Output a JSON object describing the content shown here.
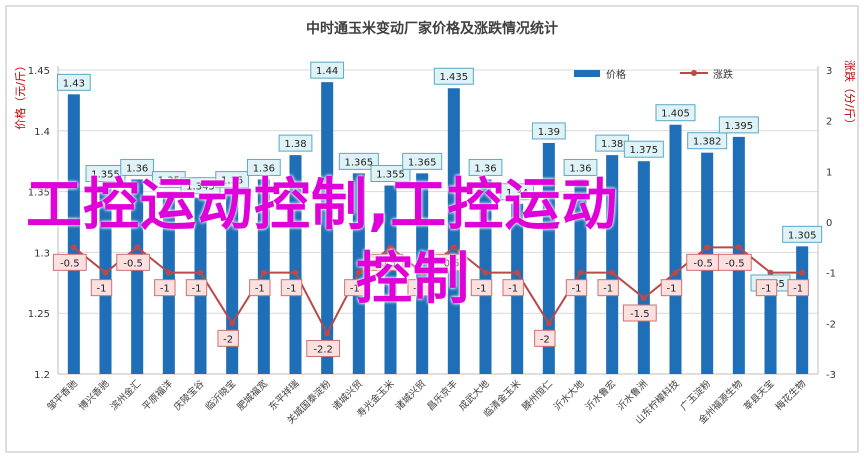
{
  "chart_data": {
    "type": "bar",
    "title": "中时通玉米变动厂家价格及涨跌情况统计",
    "y_left_label": "价格（元/斤）",
    "y_right_label": "涨跌（分/斤）",
    "ylim_left": [
      1.2,
      1.45
    ],
    "yticks_left": [
      "1.2",
      "1.25",
      "1.3",
      "1.35",
      "1.4",
      "1.45"
    ],
    "ylim_right": [
      -3,
      3
    ],
    "yticks_right": [
      "-3",
      "-2",
      "-1",
      "0",
      "1",
      "2",
      "3"
    ],
    "legend_position": "top-right",
    "categories": [
      "邹平香驰",
      "博兴香驰",
      "滨州金汇",
      "平原福洋",
      "庆陵宝谷",
      "临沂晓宝",
      "肥城福宽",
      "东平祥瑞",
      "关城国泰淀粉",
      "诸城兴贸",
      "寿光金玉米",
      "诸城兴贸",
      "昌乐京丰",
      "成武大地",
      "临清金玉米",
      "滕州恒仁",
      "沂水大地",
      "沂水鲁宏",
      "沂水鲁洲",
      "山东柠檬科技",
      "广玉淀粉",
      "金州福源生物",
      "莘县天宝",
      "梅花生物"
    ],
    "series": [
      {
        "name": "价格",
        "kind": "bar",
        "color": "#1f6fb8",
        "values": [
          1.43,
          1.355,
          1.36,
          1.35,
          1.345,
          1.35,
          1.36,
          1.38,
          1.44,
          1.365,
          1.355,
          1.365,
          1.435,
          1.36,
          1.34,
          1.39,
          1.36,
          1.38,
          1.375,
          1.405,
          1.382,
          1.395,
          1.265,
          1.305
        ],
        "labels": [
          "1.43",
          "1.355",
          "1.36",
          "1.35",
          "1.345",
          "1.35",
          "1.36",
          "1.38",
          "1.44",
          "1.365",
          "1.355",
          "1.365",
          "1.435",
          "1.36",
          "1.34",
          "1.39",
          "1.36",
          "1.38",
          "1.375",
          "1.405",
          "1.382",
          "1.395",
          "1.265",
          "1.305"
        ]
      },
      {
        "name": "涨跌",
        "kind": "line",
        "color": "#b84a4a",
        "values": [
          -0.5,
          -1,
          -0.5,
          -1,
          -1,
          -2,
          -1,
          -1,
          -2.2,
          -1,
          -0.5,
          -1,
          -0.5,
          -1,
          -1,
          -2,
          -1,
          -1,
          -1.5,
          -1,
          -0.5,
          -0.5,
          -1,
          -1
        ],
        "labels": [
          "-0.5",
          "-1",
          "-0.5",
          "-1",
          "-1",
          "-2",
          "-1",
          "-1",
          "-2.2",
          "-1",
          "-0.5",
          "-1",
          "-0.5",
          "-1",
          "-1",
          "-2",
          "-1",
          "-1",
          "-1.5",
          "-1",
          "-0.5",
          "-0.5",
          "-1",
          "-1"
        ]
      }
    ],
    "colors": {
      "bar": "#1f6fb8",
      "line": "#b84a4a",
      "price_label_bg": "#dff3f6",
      "price_label_border": "#5aa7c7",
      "change_label_bg": "#fbe0e0",
      "change_label_border": "#d07070",
      "axis_title": "#c00000"
    }
  },
  "watermark": {
    "line1": "工控运动控制,工控运动",
    "line2": "控制"
  }
}
